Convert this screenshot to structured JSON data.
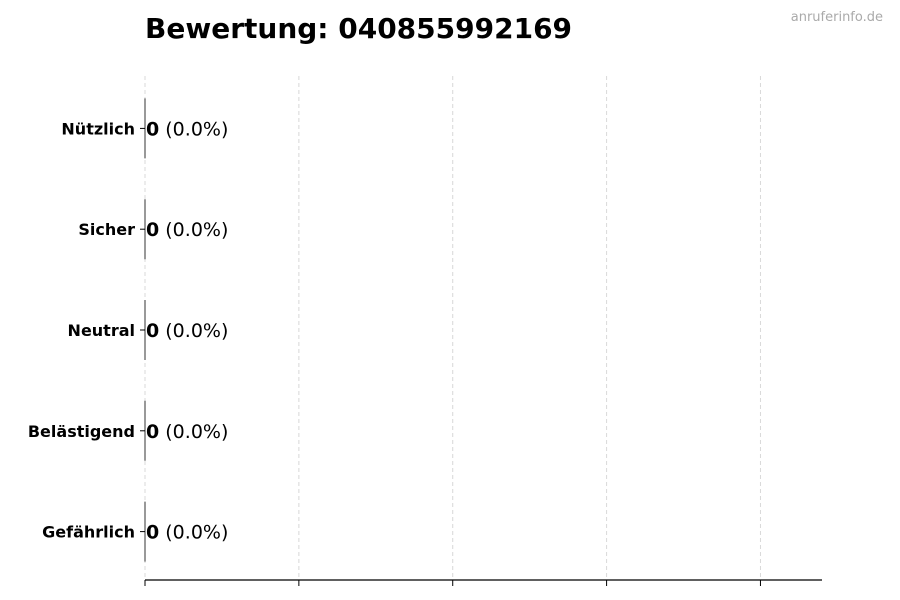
{
  "chart_data": {
    "type": "bar",
    "orientation": "horizontal",
    "title": "Bewertung: 040855992169",
    "categories": [
      "Nützlich",
      "Sicher",
      "Neutral",
      "Belästigend",
      "Gefährlich"
    ],
    "values": [
      0,
      0,
      0,
      0,
      0
    ],
    "labels": [
      {
        "count": "0",
        "percent": "(0.0%)"
      },
      {
        "count": "0",
        "percent": "(0.0%)"
      },
      {
        "count": "0",
        "percent": "(0.0%)"
      },
      {
        "count": "0",
        "percent": "(0.0%)"
      },
      {
        "count": "0",
        "percent": "(0.0%)"
      }
    ],
    "xlim": [
      0,
      4.4
    ],
    "xticks": [
      0,
      1,
      2,
      3,
      4
    ],
    "xtick_labels_shown": false,
    "grid": "x dashed",
    "bar_color": "#333333"
  },
  "watermark": "anruferinfo.de"
}
